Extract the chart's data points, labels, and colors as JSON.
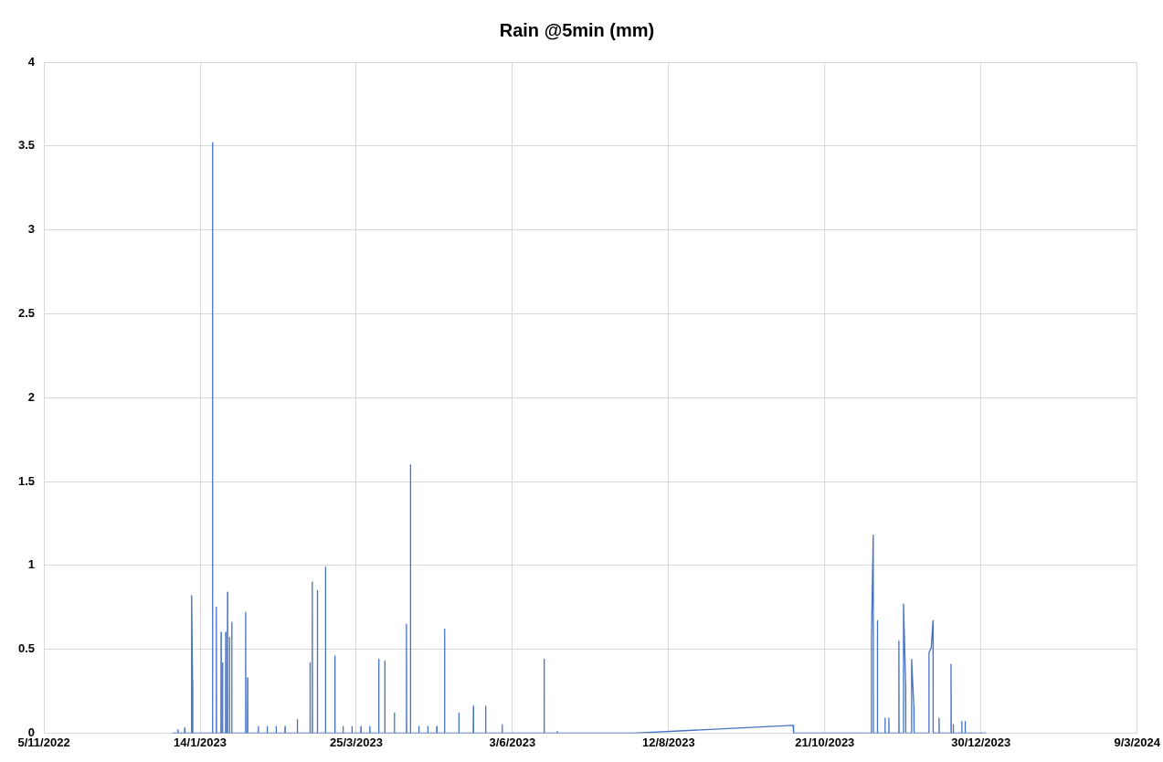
{
  "chart_data": {
    "type": "line",
    "title": "Rain @5min (mm)",
    "xlim": [
      "2022-11-05",
      "2024-03-09"
    ],
    "xticks": [
      {
        "value": "2022-11-05",
        "label": "5/11/2022"
      },
      {
        "value": "2023-01-14",
        "label": "14/1/2023"
      },
      {
        "value": "2023-03-25",
        "label": "25/3/2023"
      },
      {
        "value": "2023-06-03",
        "label": "3/6/2023"
      },
      {
        "value": "2023-08-12",
        "label": "12/8/2023"
      },
      {
        "value": "2023-10-21",
        "label": "21/10/2023"
      },
      {
        "value": "2023-12-30",
        "label": "30/12/2023"
      },
      {
        "value": "2024-03-09",
        "label": "9/3/2024"
      }
    ],
    "ylim": [
      0,
      4
    ],
    "yticks": [
      0,
      0.5,
      1,
      1.5,
      2,
      2.5,
      3,
      3.5,
      4
    ],
    "grid": true,
    "legend": false,
    "marker": "none",
    "line_style": "solid",
    "series": [
      {
        "color": "#4472c4",
        "x": [
          "2023-01-01T12:00",
          "2023-01-04T00:00",
          "2023-01-04T02:00",
          "2023-01-04T04:00",
          "2023-01-07T00:00",
          "2023-01-07T02:00",
          "2023-01-07T04:00",
          "2023-01-10T03:00",
          "2023-01-10T05:00",
          "2023-01-10T15:00",
          "2023-01-10T17:00",
          "2023-01-19T12:00",
          "2023-01-19T14:00",
          "2023-01-19T16:00",
          "2023-01-21T05:00",
          "2023-01-21T07:00",
          "2023-01-21T09:00",
          "2023-01-23T08:00",
          "2023-01-23T10:00",
          "2023-01-23T12:00",
          "2023-01-24T00:00",
          "2023-01-24T02:00",
          "2023-01-24T04:00",
          "2023-01-25T10:00",
          "2023-01-25T12:00",
          "2023-01-25T14:00",
          "2023-01-26T05:00",
          "2023-01-26T07:00",
          "2023-01-26T09:00",
          "2023-01-27T03:00",
          "2023-01-27T05:00",
          "2023-01-27T07:00",
          "2023-01-28T03:00",
          "2023-01-28T05:00",
          "2023-01-28T07:00",
          "2023-02-03T08:00",
          "2023-02-03T10:00",
          "2023-02-03T12:00",
          "2023-02-04T05:00",
          "2023-02-04T07:00",
          "2023-02-04T09:00",
          "2023-02-09T00:00",
          "2023-02-09T02:00",
          "2023-02-09T04:00",
          "2023-02-13T00:00",
          "2023-02-13T02:00",
          "2023-02-13T04:00",
          "2023-02-17T00:00",
          "2023-02-17T02:00",
          "2023-02-17T04:00",
          "2023-02-21T00:00",
          "2023-02-21T02:00",
          "2023-02-21T04:00",
          "2023-02-26T12:00",
          "2023-02-26T14:00",
          "2023-02-26T16:00",
          "2023-03-04T05:00",
          "2023-03-04T07:00",
          "2023-03-04T09:00",
          "2023-03-05T05:00",
          "2023-03-05T07:00",
          "2023-03-05T09:00",
          "2023-03-07T12:00",
          "2023-03-07T14:00",
          "2023-03-07T16:00",
          "2023-03-11T03:00",
          "2023-03-11T05:00",
          "2023-03-11T07:00",
          "2023-03-15T08:00",
          "2023-03-15T10:00",
          "2023-03-15T12:00",
          "2023-03-19T00:00",
          "2023-03-19T02:00",
          "2023-03-19T04:00",
          "2023-03-23T00:00",
          "2023-03-23T02:00",
          "2023-03-23T04:00",
          "2023-03-27T00:00",
          "2023-03-27T02:00",
          "2023-03-27T04:00",
          "2023-03-31T00:00",
          "2023-03-31T02:00",
          "2023-03-31T04:00",
          "2023-04-04T00:00",
          "2023-04-04T02:00",
          "2023-04-04T04:00",
          "2023-04-06T17:00",
          "2023-04-06T19:00",
          "2023-04-06T21:00",
          "2023-04-11T00:00",
          "2023-04-11T02:00",
          "2023-04-11T04:00",
          "2023-04-16T10:00",
          "2023-04-16T12:00",
          "2023-04-16T14:00",
          "2023-04-18T05:00",
          "2023-04-18T07:00",
          "2023-04-18T09:00",
          "2023-04-22T00:00",
          "2023-04-22T02:00",
          "2023-04-22T04:00",
          "2023-04-26T00:00",
          "2023-04-26T02:00",
          "2023-04-26T04:00",
          "2023-04-30T00:00",
          "2023-04-30T02:00",
          "2023-04-30T04:00",
          "2023-05-03T12:00",
          "2023-05-03T14:00",
          "2023-05-03T16:00",
          "2023-05-09T22:00",
          "2023-05-10T00:00",
          "2023-05-10T02:00",
          "2023-05-16T10:00",
          "2023-05-16T12:00",
          "2023-05-16T14:00",
          "2023-05-21T22:00",
          "2023-05-22T00:00",
          "2023-05-22T02:00",
          "2023-05-29T08:00",
          "2023-05-29T10:00",
          "2023-05-29T12:00",
          "2023-06-17T03:00",
          "2023-06-17T05:00",
          "2023-06-17T07:00",
          "2023-06-23T00:00",
          "2023-06-23T02:00",
          "2023-06-23T04:00",
          "2023-07-27T12:00",
          "2023-10-06T19:00",
          "2023-10-07T00:00",
          "2023-11-10T20:00",
          "2023-11-10T22:00",
          "2023-11-11T17:00",
          "2023-11-11T19:00",
          "2023-11-13T12:00",
          "2023-11-13T14:00",
          "2023-11-13T16:00",
          "2023-11-16T22:00",
          "2023-11-17T00:00",
          "2023-11-17T02:00",
          "2023-11-18T15:00",
          "2023-11-18T17:00",
          "2023-11-18T19:00",
          "2023-11-23T03:00",
          "2023-11-23T05:00",
          "2023-11-23T07:00",
          "2023-11-25T05:00",
          "2023-11-25T07:00",
          "2023-11-26T05:00",
          "2023-11-26T07:00",
          "2023-11-28T20:00",
          "2023-11-28T22:00",
          "2023-11-29T22:00",
          "2023-11-30T00:00",
          "2023-12-06T15:00",
          "2023-12-06T17:00",
          "2023-12-07T17:00",
          "2023-12-08T12:00",
          "2023-12-08T14:00",
          "2023-12-11T03:00",
          "2023-12-11T05:00",
          "2023-12-11T07:00",
          "2023-12-16T12:00",
          "2023-12-16T14:00",
          "2023-12-16T16:00",
          "2023-12-17T12:00",
          "2023-12-17T14:00",
          "2023-12-17T16:00",
          "2023-12-21T08:00",
          "2023-12-21T10:00",
          "2023-12-21T12:00",
          "2023-12-22T20:00",
          "2023-12-22T22:00",
          "2023-12-23T00:00",
          "2024-01-01T07:00"
        ],
        "values": [
          0,
          0,
          0.02,
          0,
          0,
          0.03,
          0,
          0,
          0.82,
          0.31,
          0,
          0,
          3.52,
          0,
          0,
          0.75,
          0,
          0,
          0.6,
          0,
          0,
          0.42,
          0,
          0,
          0.6,
          0,
          0,
          0.84,
          0,
          0,
          0.57,
          0,
          0,
          0.66,
          0,
          0,
          0.72,
          0,
          0,
          0.33,
          0,
          0,
          0.04,
          0,
          0,
          0.04,
          0,
          0,
          0.04,
          0,
          0,
          0.04,
          0,
          0,
          0.08,
          0,
          0,
          0.42,
          0,
          0,
          0.9,
          0,
          0,
          0.85,
          0,
          0,
          0.99,
          0,
          0,
          0.46,
          0,
          0,
          0.04,
          0,
          0,
          0.04,
          0,
          0,
          0.04,
          0,
          0,
          0.04,
          0,
          0,
          0.44,
          0,
          0,
          0.43,
          0,
          0,
          0.12,
          0,
          0,
          0.65,
          0,
          0,
          1.6,
          0,
          0,
          0.04,
          0,
          0,
          0.04,
          0,
          0,
          0.04,
          0,
          0,
          0.62,
          0,
          0,
          0.12,
          0,
          0,
          0.16,
          0,
          0,
          0.16,
          0,
          0,
          0.05,
          0,
          0,
          0.44,
          0,
          0,
          0.01,
          0,
          0,
          0.046,
          0,
          0,
          0.57,
          1.18,
          0,
          0,
          0.67,
          0,
          0,
          0.09,
          0,
          0,
          0.09,
          0,
          0,
          0.55,
          0,
          0,
          0.77,
          0.3,
          0,
          0,
          0.44,
          0.16,
          0,
          0,
          0.48,
          0.51,
          0.67,
          0,
          0,
          0.09,
          0,
          0,
          0.41,
          0,
          0,
          0.05,
          0,
          0,
          0.07,
          0,
          0,
          0.07,
          0,
          0
        ]
      }
    ]
  }
}
